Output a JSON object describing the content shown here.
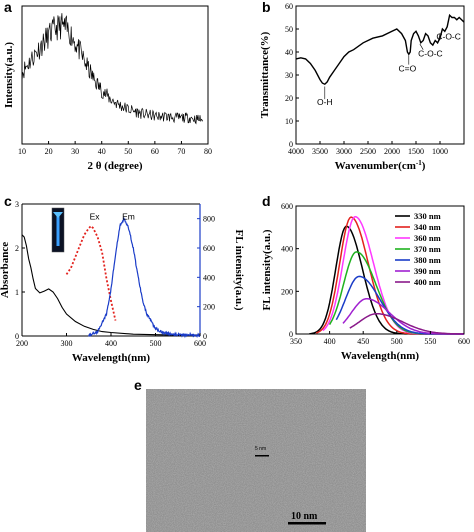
{
  "panels": {
    "a": "a",
    "b": "b",
    "c": "c",
    "d": "d",
    "e": "e"
  },
  "colors": {
    "ex_curve": "#e3221e",
    "em_curve": "#1a3cc8",
    "fl_axis": "#1a3cc8",
    "d_series": [
      "#000000",
      "#e3221e",
      "#ff38ff",
      "#1fb21f",
      "#1a3cc8",
      "#a020d0",
      "#8a1a8a"
    ]
  },
  "chart_data": [
    {
      "id": "a",
      "type": "line",
      "xlabel": "2 θ (degree)",
      "ylabel": "Intensity(a.u.)",
      "xlim": [
        10,
        80
      ],
      "xticks": [
        "10",
        "20",
        "30",
        "40",
        "50",
        "60",
        "70",
        "80"
      ],
      "x": [
        10,
        13,
        16,
        19,
        22,
        25,
        28,
        31,
        34,
        37,
        40,
        43,
        46,
        49,
        52,
        55,
        58,
        61,
        64,
        67,
        70,
        73,
        76,
        78
      ],
      "values": [
        0.52,
        0.6,
        0.68,
        0.76,
        0.83,
        0.86,
        0.81,
        0.7,
        0.58,
        0.47,
        0.39,
        0.33,
        0.29,
        0.26,
        0.24,
        0.22,
        0.21,
        0.2,
        0.2,
        0.19,
        0.19,
        0.19,
        0.18,
        0.18
      ]
    },
    {
      "id": "b",
      "type": "line",
      "xlabel": "Wavenumber(cm",
      "xlabel_sup": "-1",
      "xlabel_end": ")",
      "ylabel": "Transmittance(%)",
      "xlim": [
        4000,
        500
      ],
      "ylim": [
        0,
        60
      ],
      "xticks": [
        "4000",
        "3500",
        "3000",
        "2500",
        "2000",
        "1500",
        "1000"
      ],
      "yticks": [
        "0",
        "10",
        "20",
        "30",
        "40",
        "50",
        "60"
      ],
      "x": [
        4000,
        3900,
        3800,
        3700,
        3600,
        3500,
        3450,
        3400,
        3350,
        3300,
        3200,
        3100,
        3000,
        2900,
        2800,
        2600,
        2400,
        2200,
        2000,
        1900,
        1800,
        1720,
        1680,
        1650,
        1620,
        1600,
        1550,
        1500,
        1450,
        1400,
        1350,
        1300,
        1250,
        1200,
        1150,
        1100,
        1050,
        1000,
        950,
        900,
        850,
        800,
        750,
        700,
        650,
        600,
        550,
        500
      ],
      "values": [
        37,
        37.5,
        37,
        35,
        32,
        28,
        26.5,
        26,
        27,
        29,
        32,
        35,
        38,
        40,
        41,
        44,
        46,
        47,
        49,
        50,
        48,
        45,
        40,
        39,
        40,
        45,
        48,
        49,
        47,
        44,
        45,
        48,
        47,
        44,
        43,
        45,
        44,
        46,
        50,
        49,
        51,
        56,
        55,
        55,
        54,
        55,
        54,
        53
      ],
      "annotations": [
        "O-H",
        "C=O",
        "C-O-C",
        "C-O-C"
      ]
    },
    {
      "id": "c",
      "type": "line",
      "xlabel": "Wavelength(nm)",
      "ylabel": "Absorbance",
      "y2label": "FL intensity(a.u.)",
      "xlim": [
        200,
        600
      ],
      "ylim": [
        0,
        3
      ],
      "y2lim": [
        0,
        900
      ],
      "xticks": [
        "200",
        "300",
        "400",
        "500",
        "600"
      ],
      "yticks": [
        "0",
        "1",
        "2",
        "3"
      ],
      "y2ticks": [
        "0",
        "200",
        "400",
        "600",
        "800"
      ],
      "series": [
        {
          "name": "Absorbance",
          "x": [
            200,
            205,
            210,
            215,
            220,
            225,
            230,
            240,
            250,
            260,
            270,
            280,
            290,
            300,
            320,
            340,
            360,
            380,
            400,
            450,
            500,
            550,
            600
          ],
          "values": [
            2.3,
            2.25,
            2.05,
            1.75,
            1.55,
            1.3,
            1.08,
            0.98,
            1.02,
            1.07,
            1.0,
            0.85,
            0.65,
            0.5,
            0.33,
            0.22,
            0.15,
            0.1,
            0.08,
            0.04,
            0.03,
            0.02,
            0.02
          ]
        },
        {
          "name": "Ex",
          "x": [
            300,
            310,
            320,
            330,
            340,
            350,
            355,
            360,
            370,
            380,
            390,
            400,
            410
          ],
          "values": [
            1.4,
            1.55,
            1.8,
            2.05,
            2.3,
            2.45,
            2.5,
            2.45,
            2.25,
            1.9,
            1.3,
            0.8,
            0.35
          ]
        },
        {
          "name": "Em",
          "x": [
            350,
            370,
            390,
            400,
            410,
            420,
            430,
            440,
            450,
            460,
            470,
            480,
            500,
            520,
            550,
            600
          ],
          "values": [
            5,
            30,
            150,
            320,
            550,
            750,
            800,
            730,
            600,
            420,
            260,
            150,
            50,
            20,
            10,
            5
          ]
        }
      ]
    },
    {
      "id": "d",
      "type": "line",
      "xlabel": "Wavelength(nm)",
      "ylabel": "FL intensity(a.u.)",
      "xlim": [
        350,
        600
      ],
      "ylim": [
        0,
        600
      ],
      "xticks": [
        "350",
        "400",
        "450",
        "500",
        "550",
        "600"
      ],
      "yticks": [
        "0",
        "200",
        "400",
        "600"
      ],
      "series": [
        {
          "name": "330 nm",
          "peak": 425,
          "amp": 505,
          "start": 370,
          "width": 28
        },
        {
          "name": "340 nm",
          "peak": 432,
          "amp": 548,
          "start": 380,
          "width": 30
        },
        {
          "name": "360 nm",
          "peak": 438,
          "amp": 550,
          "start": 390,
          "width": 32
        },
        {
          "name": "370 nm",
          "peak": 440,
          "amp": 385,
          "start": 400,
          "width": 34
        },
        {
          "name": "380 nm",
          "peak": 444,
          "amp": 270,
          "start": 410,
          "width": 36
        },
        {
          "name": "390 nm",
          "peak": 455,
          "amp": 165,
          "start": 420,
          "width": 40
        },
        {
          "name": "400 nm",
          "peak": 470,
          "amp": 95,
          "start": 430,
          "width": 45
        }
      ]
    }
  ],
  "image_e": {
    "scalebar": "10 nm",
    "inset_label": "5 nm"
  }
}
